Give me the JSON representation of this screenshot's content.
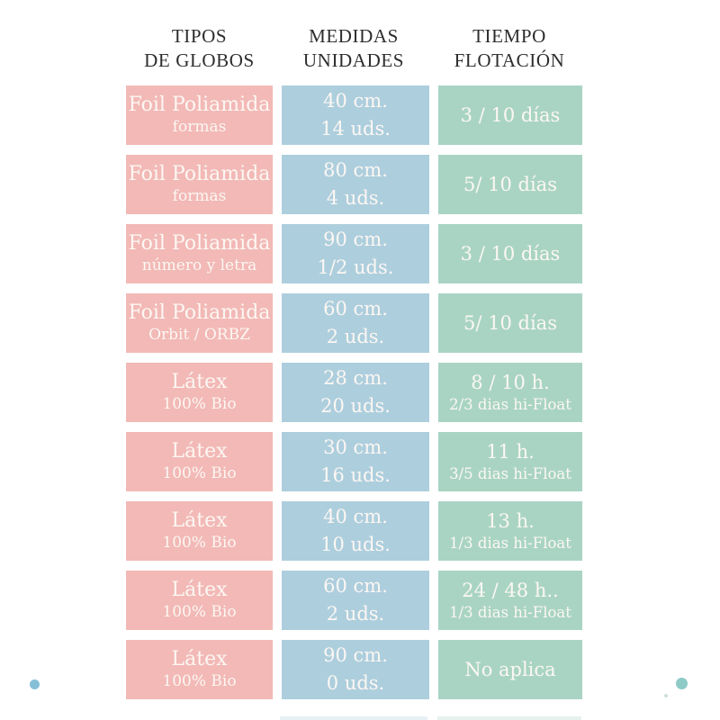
{
  "colors": {
    "background": "#ffffff",
    "tipo_cell": "#f2b9b6",
    "medidas_cell": "#adcedd",
    "tiempo_cell": "#a9d4c4",
    "header_text": "#2d2d2d",
    "cell_text": "#fcf7f3",
    "dot_left": "#85bfd7",
    "dot_right": "#8ecac8"
  },
  "header": {
    "columns": [
      {
        "line1": "TIPOS",
        "line2": "DE GLOBOS"
      },
      {
        "line1": "MEDIDAS",
        "line2": "UNIDADES"
      },
      {
        "line1": "TIEMPO",
        "line2": "FLOTACIÓN"
      }
    ]
  },
  "chart_data": {
    "type": "table",
    "columns": [
      "TIPOS DE GLOBOS",
      "MEDIDAS UNIDADES",
      "TIEMPO FLOTACIÓN"
    ],
    "rows": [
      {
        "tipo": [
          "Foil Poliamida",
          "formas"
        ],
        "medidas": [
          "40 cm.",
          "14 uds."
        ],
        "tiempo": [
          "3 / 10 días"
        ]
      },
      {
        "tipo": [
          "Foil Poliamida",
          "formas"
        ],
        "medidas": [
          "80 cm.",
          "4 uds."
        ],
        "tiempo": [
          "5/ 10 días"
        ]
      },
      {
        "tipo": [
          "Foil Poliamida",
          "número y letra"
        ],
        "medidas": [
          "90 cm.",
          "1/2 uds."
        ],
        "tiempo": [
          "3 / 10 días"
        ]
      },
      {
        "tipo": [
          "Foil Poliamida",
          "Orbit / ORBZ"
        ],
        "medidas": [
          "60 cm.",
          "2 uds."
        ],
        "tiempo": [
          "5/ 10 días"
        ]
      },
      {
        "tipo": [
          "Látex",
          "100% Bio"
        ],
        "medidas": [
          "28 cm.",
          "20 uds."
        ],
        "tiempo": [
          "8 / 10 h.",
          "2/3 dias hi-Float"
        ]
      },
      {
        "tipo": [
          "Látex",
          "100% Bio"
        ],
        "medidas": [
          "30 cm.",
          "16 uds."
        ],
        "tiempo": [
          "11 h.",
          "3/5 dias hi-Float"
        ]
      },
      {
        "tipo": [
          "Látex",
          "100% Bio"
        ],
        "medidas": [
          "40 cm.",
          "10 uds."
        ],
        "tiempo": [
          "13 h.",
          "1/3 dias hi-Float"
        ]
      },
      {
        "tipo": [
          "Látex",
          "100% Bio"
        ],
        "medidas": [
          "60 cm.",
          "2 uds."
        ],
        "tiempo": [
          "24 / 48 h..",
          "1/3 dias hi-Float"
        ]
      },
      {
        "tipo": [
          "Látex",
          "100% Bio"
        ],
        "medidas": [
          "90 cm.",
          "0 uds."
        ],
        "tiempo": [
          "No aplica"
        ]
      }
    ]
  }
}
